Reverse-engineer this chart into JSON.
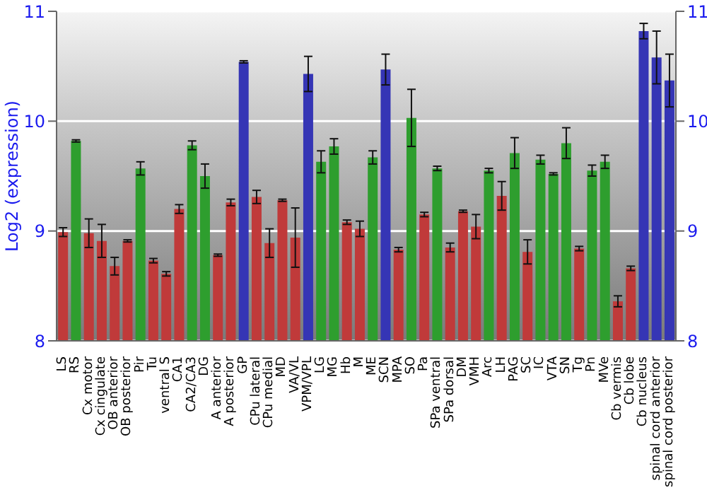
{
  "chart_data": {
    "type": "bar",
    "ylabel": "Log2 (expression)",
    "categories": [
      "LS",
      "RS",
      "Cx motor",
      "Cx cingulate",
      "OB anterior",
      "OB posterior",
      "Pir",
      "Tu",
      "ventral S",
      "CA1",
      "CA2/CA3",
      "DG",
      "A anterior",
      "A posterior",
      "GP",
      "CPu lateral",
      "CPu medial",
      "MD",
      "VA/VL",
      "VPM/VPL",
      "LG",
      "MG",
      "Hb",
      "M",
      "ME",
      "SCN",
      "MPA",
      "SO",
      "Pa",
      "SPa ventral",
      "SPa dorsal",
      "DM",
      "VMH",
      "Arc",
      "LH",
      "PAG",
      "SC",
      "IC",
      "VTA",
      "SN",
      "Tg",
      "Pn",
      "MVe",
      "Cb vermis",
      "Cb lobe",
      "Cb nucleus",
      "spinal cord anterior",
      "spinal cord posterior"
    ],
    "values": [
      8.99,
      9.82,
      8.98,
      8.91,
      8.68,
      8.91,
      9.57,
      8.73,
      8.61,
      9.2,
      9.78,
      9.5,
      8.78,
      9.26,
      10.54,
      9.31,
      8.89,
      9.28,
      8.94,
      10.43,
      9.63,
      9.77,
      9.08,
      9.02,
      9.67,
      10.47,
      8.83,
      10.03,
      9.15,
      9.57,
      8.85,
      9.18,
      9.04,
      9.55,
      9.32,
      9.71,
      8.81,
      9.65,
      9.52,
      9.8,
      8.84,
      9.55,
      9.63,
      8.36,
      8.66,
      10.82,
      10.58,
      10.37
    ],
    "errors": [
      0.04,
      0.01,
      0.13,
      0.15,
      0.08,
      0.01,
      0.06,
      0.02,
      0.02,
      0.04,
      0.04,
      0.11,
      0.01,
      0.03,
      0.01,
      0.06,
      0.13,
      0.01,
      0.27,
      0.16,
      0.1,
      0.07,
      0.02,
      0.07,
      0.06,
      0.14,
      0.02,
      0.26,
      0.02,
      0.02,
      0.04,
      0.01,
      0.11,
      0.02,
      0.13,
      0.14,
      0.11,
      0.04,
      0.01,
      0.14,
      0.02,
      0.05,
      0.06,
      0.05,
      0.02,
      0.07,
      0.24,
      0.24
    ],
    "colors": [
      "#c03a3a",
      "#2e9e2e",
      "#c03a3a",
      "#c03a3a",
      "#c03a3a",
      "#c03a3a",
      "#2e9e2e",
      "#c03a3a",
      "#c03a3a",
      "#c03a3a",
      "#2e9e2e",
      "#2e9e2e",
      "#c03a3a",
      "#c03a3a",
      "#3535b5",
      "#c03a3a",
      "#c03a3a",
      "#c03a3a",
      "#c03a3a",
      "#3535b5",
      "#2e9e2e",
      "#2e9e2e",
      "#c03a3a",
      "#c03a3a",
      "#2e9e2e",
      "#3535b5",
      "#c03a3a",
      "#2e9e2e",
      "#c03a3a",
      "#2e9e2e",
      "#c03a3a",
      "#c03a3a",
      "#c03a3a",
      "#2e9e2e",
      "#c03a3a",
      "#2e9e2e",
      "#c03a3a",
      "#2e9e2e",
      "#2e9e2e",
      "#2e9e2e",
      "#c03a3a",
      "#2e9e2e",
      "#2e9e2e",
      "#c03a3a",
      "#c03a3a",
      "#3535b5",
      "#3535b5",
      "#3535b5"
    ],
    "ylim": [
      8,
      11
    ],
    "yticks": [
      8,
      9,
      10,
      11
    ],
    "y2lim": [
      8,
      11
    ],
    "y2ticks": [
      8,
      9,
      10,
      11
    ],
    "grid": "y"
  }
}
